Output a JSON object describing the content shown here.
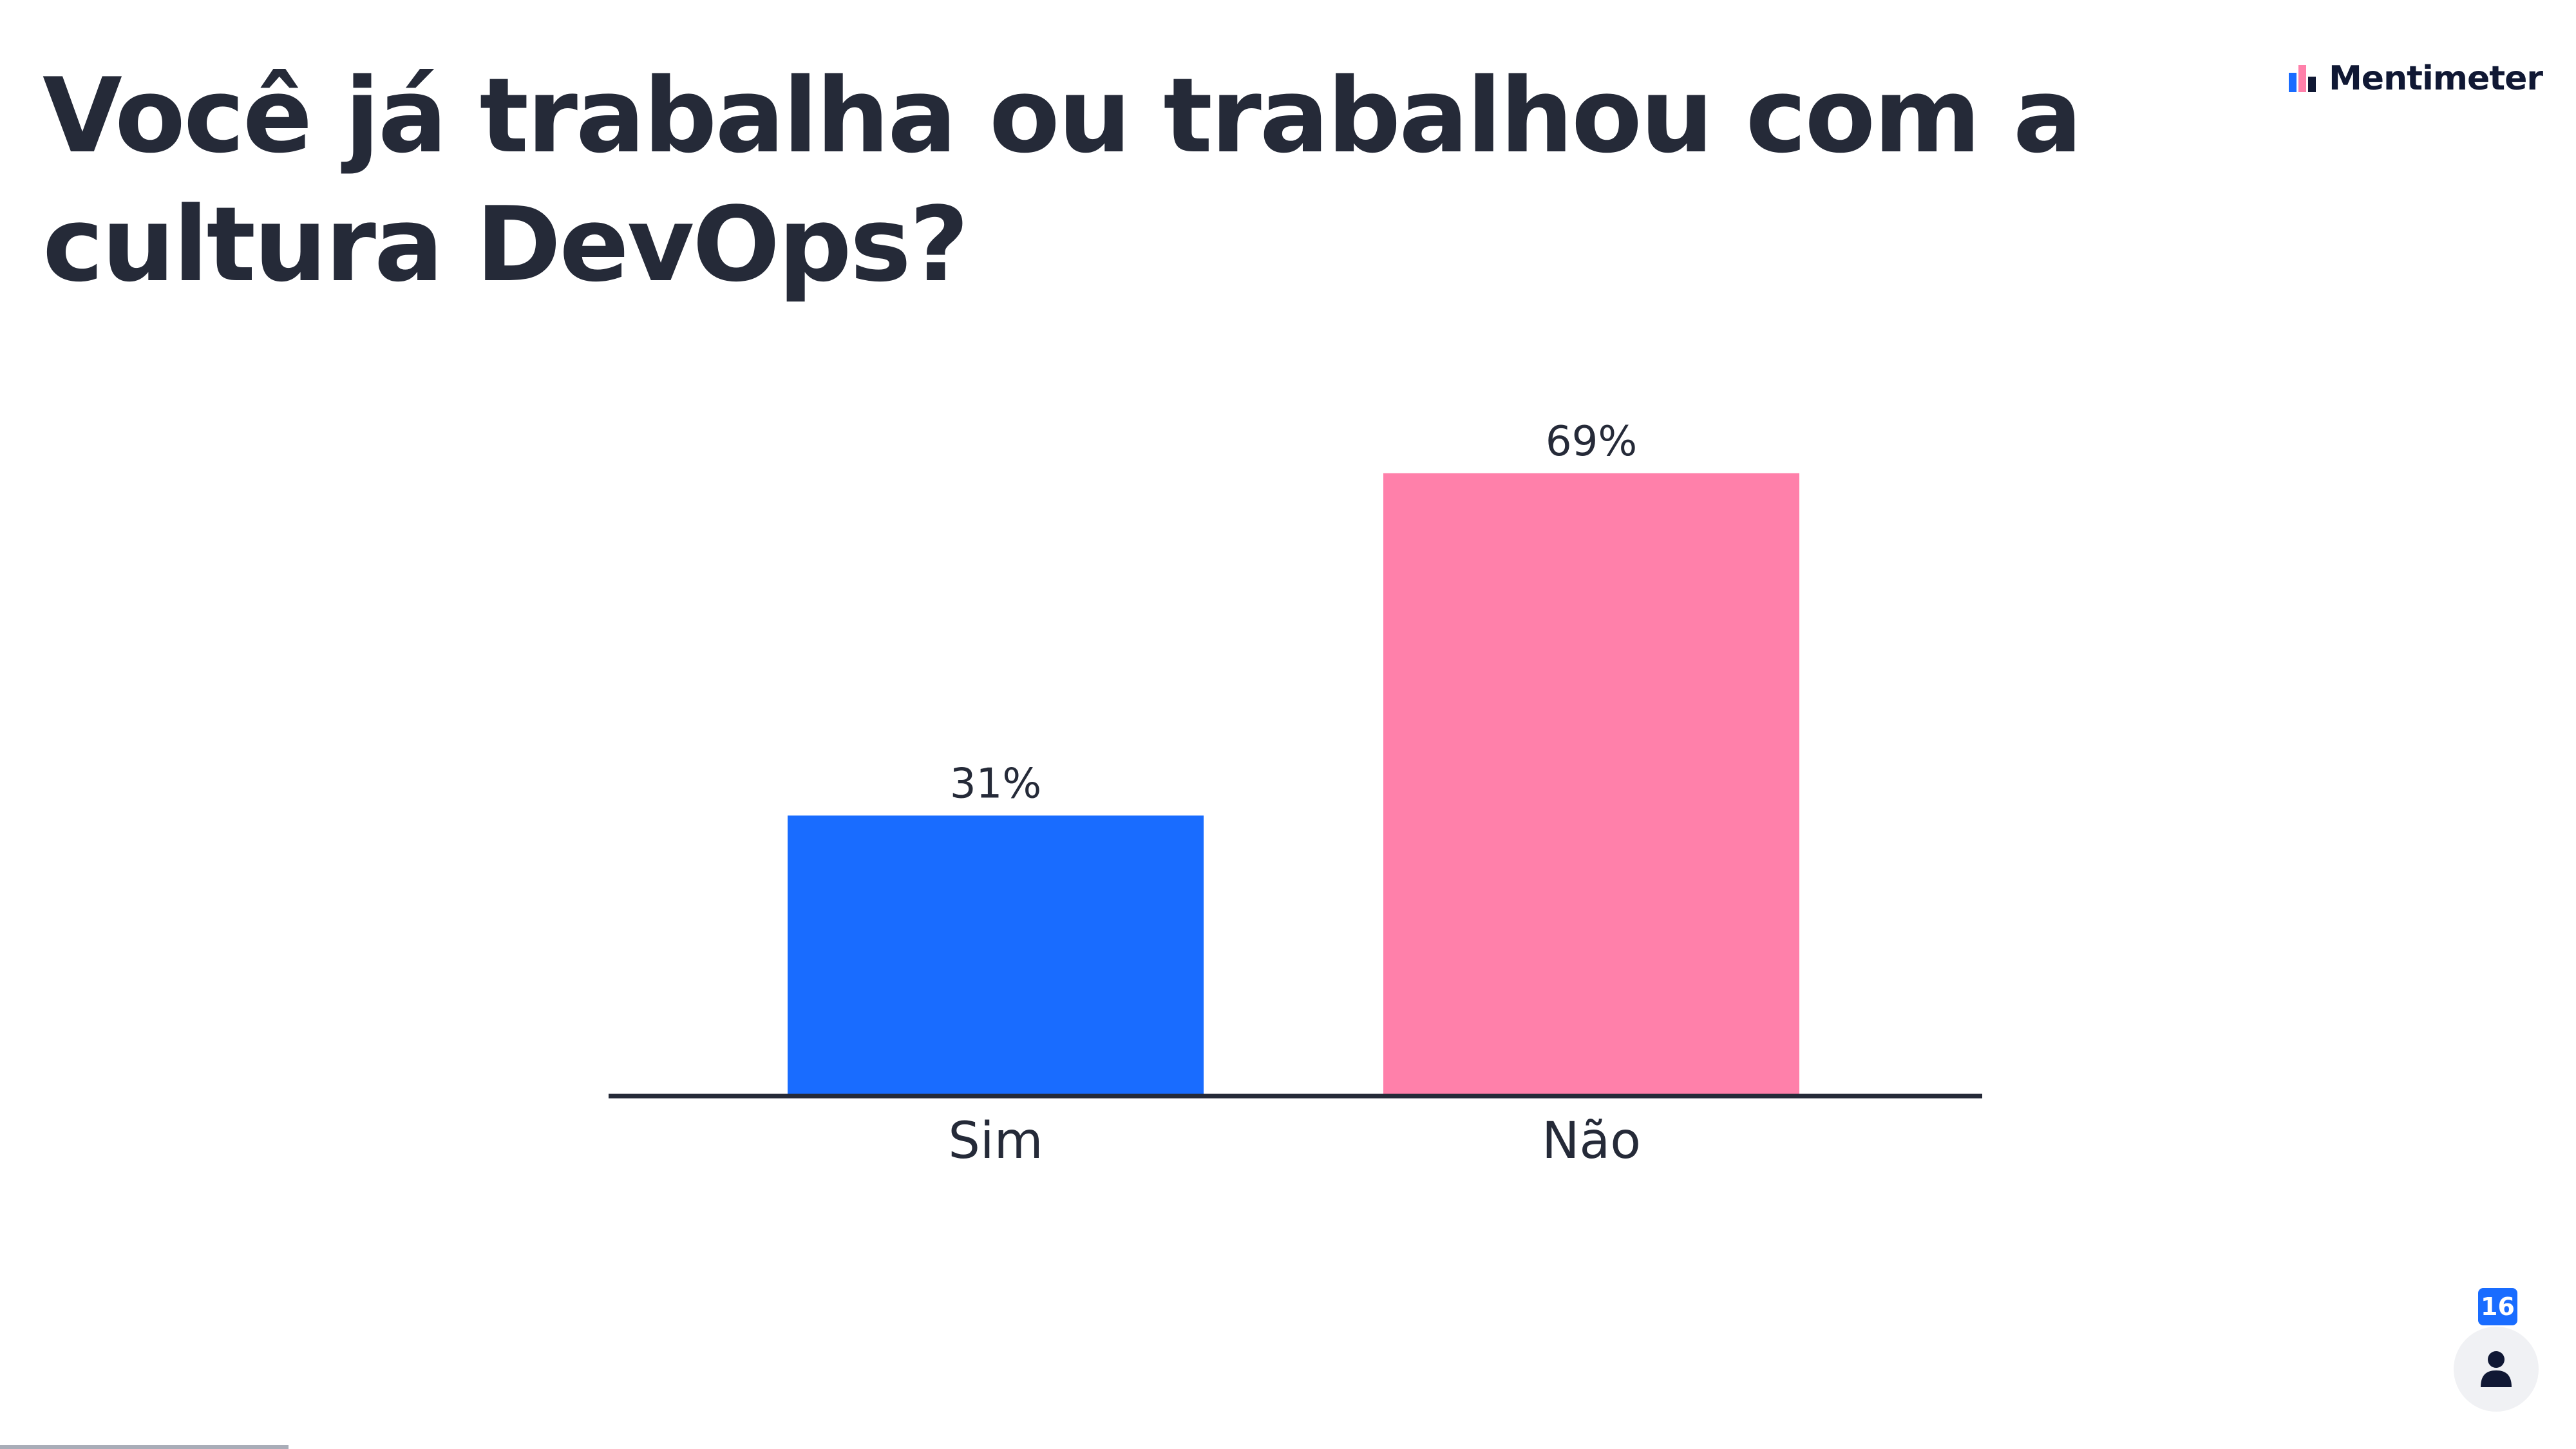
{
  "title": "Você já trabalha ou trabalhou com a cultura DevOps?",
  "brand": {
    "name": "Mentimeter",
    "icon": "mentimeter-logo-icon"
  },
  "participants": {
    "count": "16",
    "icon": "person-icon"
  },
  "progress": {
    "fraction": 0.112
  },
  "colors": {
    "sim": "#196cff",
    "nao": "#ff80aa",
    "axis": "#252a38",
    "text": "#252a38"
  },
  "chart_data": {
    "type": "bar",
    "categories": [
      "Sim",
      "Não"
    ],
    "values": [
      31,
      69
    ],
    "value_labels": [
      "31%",
      "69%"
    ],
    "unit": "%",
    "ylim": [
      0,
      100
    ],
    "grid": false,
    "legend": "none"
  }
}
